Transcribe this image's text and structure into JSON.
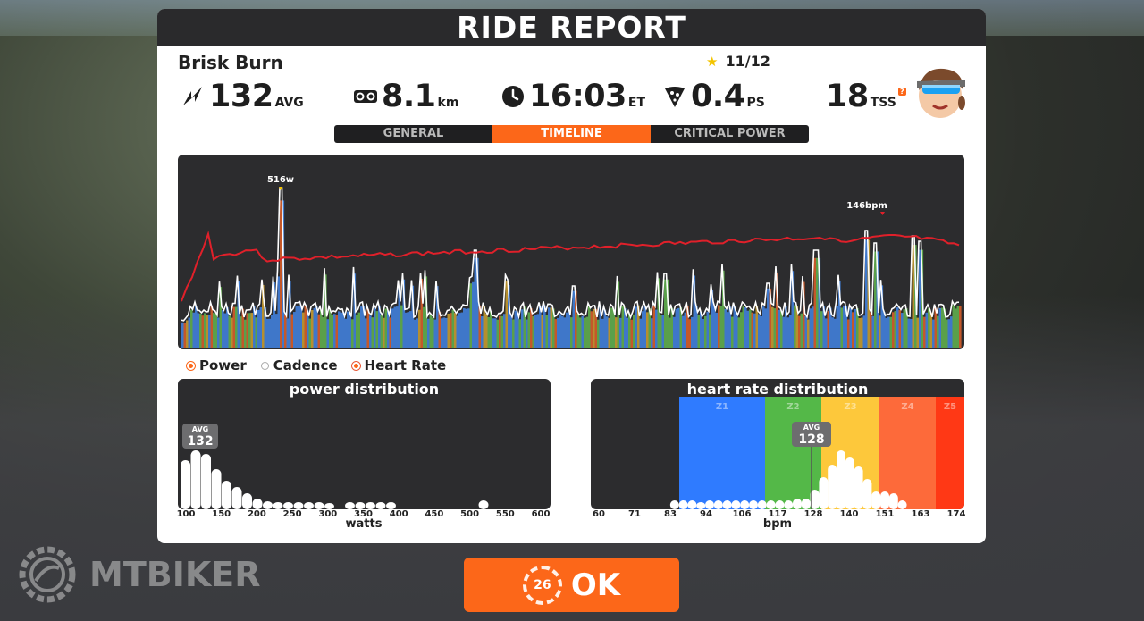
{
  "header": {
    "title": "RIDE REPORT"
  },
  "ride": {
    "name": "Brisk Burn",
    "rating": "11/12"
  },
  "stats": {
    "power": {
      "value": "132",
      "unit": "AVG",
      "icon": "power-bolt-icon"
    },
    "distance": {
      "value": "8.1",
      "unit": "km",
      "icon": "bike-icon"
    },
    "time": {
      "value": "16:03",
      "unit": "ET",
      "icon": "clock-icon"
    },
    "calories": {
      "value": "0.4",
      "unit": "PS",
      "icon": "pizza-icon"
    },
    "tss": {
      "value": "18",
      "unit": "TSS",
      "help": "?"
    }
  },
  "tabs": [
    {
      "label": "GENERAL",
      "active": false
    },
    {
      "label": "TIMELINE",
      "active": true
    },
    {
      "label": "CRITICAL POWER",
      "active": false
    }
  ],
  "timeline": {
    "peak_power_label": "516w",
    "peak_hr_label": "146bpm"
  },
  "legend": {
    "power": "Power",
    "cadence": "Cadence",
    "heart_rate": "Heart Rate"
  },
  "power_distribution": {
    "title": "power distribution",
    "avg_label": "AVG",
    "avg_value": "132",
    "xlabel": "watts",
    "ticks": [
      "100",
      "150",
      "200",
      "250",
      "300",
      "350",
      "400",
      "450",
      "500",
      "550",
      "600"
    ]
  },
  "hr_distribution": {
    "title": "heart rate distribution",
    "avg_label": "AVG",
    "avg_value": "128",
    "xlabel": "bpm",
    "ticks": [
      "60",
      "71",
      "83",
      "94",
      "106",
      "117",
      "128",
      "140",
      "151",
      "163",
      "174"
    ],
    "zones": [
      {
        "label": "Z1",
        "color": "#2f7bff"
      },
      {
        "label": "Z2",
        "color": "#54b848"
      },
      {
        "label": "Z3",
        "color": "#fdc83b"
      },
      {
        "label": "Z4",
        "color": "#fd6a3a"
      },
      {
        "label": "Z5",
        "color": "#ff3815"
      }
    ]
  },
  "ok_button": {
    "label": "OK",
    "countdown": "26"
  },
  "watermark": {
    "text": "MTBIKER"
  },
  "colors": {
    "accent": "#fc6719",
    "dark": "#2a2a2c",
    "hr_line": "#e0202a"
  }
}
